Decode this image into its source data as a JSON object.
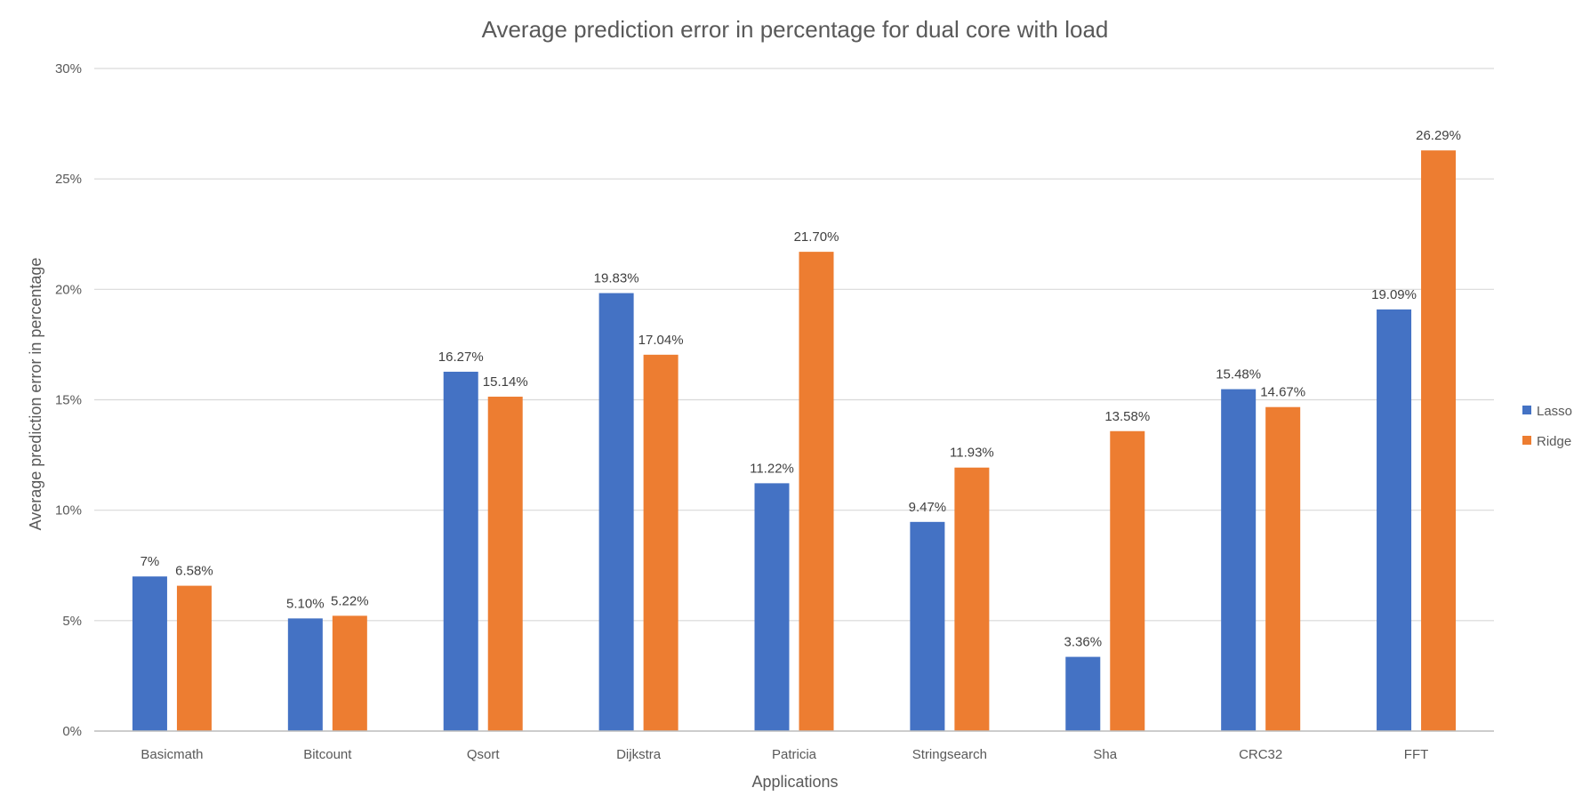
{
  "chart_data": {
    "type": "bar",
    "title": "Average prediction error in percentage for dual core with load",
    "xlabel": "Applications",
    "ylabel": "Average prediction error in percentage",
    "categories": [
      "Basicmath",
      "Bitcount",
      "Qsort",
      "Dijkstra",
      "Patricia",
      "Stringsearch",
      "Sha",
      "CRC32",
      "FFT"
    ],
    "ylim": [
      0,
      30
    ],
    "yticks": [
      0,
      5,
      10,
      15,
      20,
      25,
      30
    ],
    "ytick_labels": [
      "0%",
      "5%",
      "10%",
      "15%",
      "20%",
      "25%",
      "30%"
    ],
    "grid": true,
    "legend_position": "right",
    "series": [
      {
        "name": "Lasso",
        "color": "#4472C4",
        "values": [
          7,
          5.1,
          16.27,
          19.83,
          11.22,
          9.47,
          3.36,
          15.48,
          19.09
        ],
        "labels": [
          "7%",
          "5.10%",
          "16.27%",
          "19.83%",
          "11.22%",
          "9.47%",
          "3.36%",
          "15.48%",
          "19.09%"
        ]
      },
      {
        "name": "Ridge",
        "color": "#ED7D31",
        "values": [
          6.58,
          5.22,
          15.14,
          17.04,
          21.7,
          11.93,
          13.58,
          14.67,
          26.29
        ],
        "labels": [
          "6.58%",
          "5.22%",
          "15.14%",
          "17.04%",
          "21.70%",
          "11.93%",
          "13.58%",
          "14.67%",
          "26.29%"
        ]
      }
    ]
  }
}
